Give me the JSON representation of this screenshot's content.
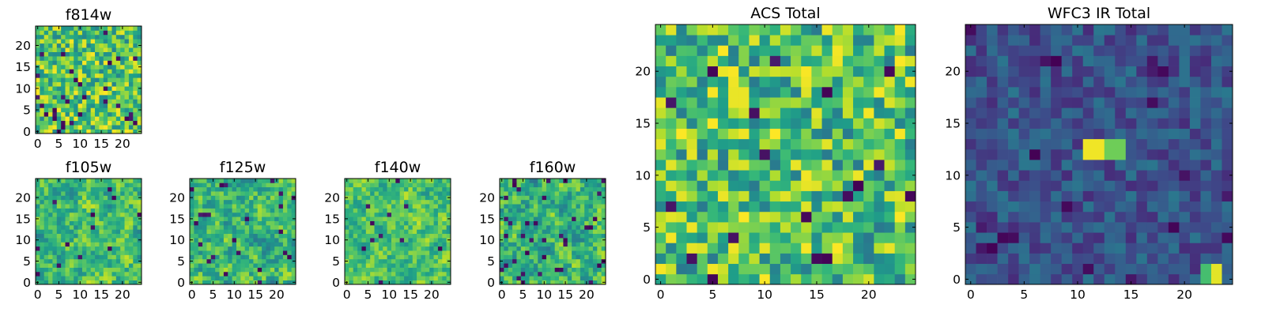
{
  "chart_data": [
    {
      "type": "heatmap",
      "title": "f814w",
      "colormap": "viridis",
      "xlim": [
        -0.5,
        24.5
      ],
      "ylim": [
        -0.5,
        24.5
      ],
      "xticks": [
        0,
        5,
        10,
        15,
        20
      ],
      "yticks": [
        0,
        5,
        10,
        15,
        20
      ],
      "grid_size": [
        25,
        25
      ],
      "cells": "random noise in the 0.45 to 1.0 range, with scattered dark cells"
    },
    {
      "type": "heatmap",
      "title": "f105w",
      "colormap": "viridis",
      "xlim": [
        -0.5,
        24.5
      ],
      "ylim": [
        -0.5,
        24.5
      ],
      "xticks": [
        0,
        5,
        10,
        15,
        20
      ],
      "yticks": [
        0,
        5,
        10,
        15,
        20
      ],
      "grid_size": [
        25,
        25
      ],
      "cells": "smoothed noise, mostly bright green to yellow"
    },
    {
      "type": "heatmap",
      "title": "f125w",
      "colormap": "viridis",
      "xlim": [
        -0.5,
        24.5
      ],
      "ylim": [
        -0.5,
        24.5
      ],
      "xticks": [
        0,
        5,
        10,
        15,
        20
      ],
      "yticks": [
        0,
        5,
        10,
        15,
        20
      ],
      "grid_size": [
        25,
        25
      ],
      "cells": "smoothed noise with a few dark blobs"
    },
    {
      "type": "heatmap",
      "title": "f140w",
      "colormap": "viridis",
      "xlim": [
        -0.5,
        24.5
      ],
      "ylim": [
        -0.5,
        24.5
      ],
      "xticks": [
        0,
        5,
        10,
        15,
        20
      ],
      "yticks": [
        0,
        5,
        10,
        15,
        20
      ],
      "grid_size": [
        25,
        25
      ],
      "cells": "smoothed noise, mostly yellow-green"
    },
    {
      "type": "heatmap",
      "title": "f160w",
      "colormap": "viridis",
      "xlim": [
        -0.5,
        24.5
      ],
      "ylim": [
        -0.5,
        24.5
      ],
      "xticks": [
        0,
        5,
        10,
        15,
        20
      ],
      "yticks": [
        0,
        5,
        10,
        15,
        20
      ],
      "grid_size": [
        25,
        25
      ],
      "cells": "smoothed noise with scattered dark blobs"
    },
    {
      "type": "heatmap",
      "title": "ACS Total",
      "colormap": "viridis",
      "xlim": [
        -0.5,
        24.5
      ],
      "ylim": [
        -0.5,
        24.5
      ],
      "xticks": [
        0,
        5,
        10,
        15,
        20
      ],
      "yticks": [
        0,
        5,
        10,
        15,
        20
      ],
      "grid_size": [
        25,
        25
      ],
      "cells": "pixel noise, mostly green/yellow, a few dark pixels",
      "bright_patches": [
        {
          "x": [
            7,
            8
          ],
          "y": [
            17,
            18
          ],
          "value": 0.97
        }
      ]
    },
    {
      "type": "heatmap",
      "title": "WFC3 IR Total",
      "colormap": "viridis",
      "xlim": [
        -0.5,
        24.5
      ],
      "ylim": [
        -0.5,
        24.5
      ],
      "xticks": [
        0,
        5,
        10,
        15,
        20
      ],
      "yticks": [
        0,
        5,
        10,
        15,
        20
      ],
      "grid_size": [
        25,
        25
      ],
      "cells": "low level noise (dark blue/teal)",
      "bright_patches": [
        {
          "x": [
            11,
            12
          ],
          "y": [
            12,
            13
          ],
          "value": 0.98
        },
        {
          "x": [
            13,
            14
          ],
          "y": [
            12,
            13
          ],
          "value": 0.78
        },
        {
          "x": [
            23,
            23
          ],
          "y": [
            0,
            1
          ],
          "value": 0.96
        },
        {
          "x": [
            22,
            22
          ],
          "y": [
            0,
            1
          ],
          "value": 0.7
        }
      ]
    }
  ]
}
